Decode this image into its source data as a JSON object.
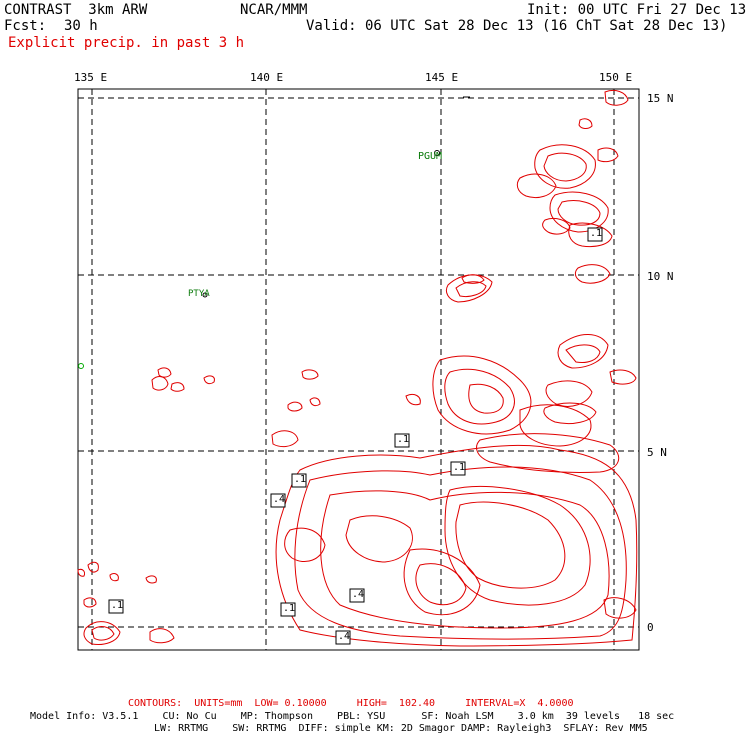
{
  "header": {
    "model": "CONTRAST  3km ARW",
    "org": "NCAR/MMM",
    "init": "Init: 00 UTC Fri 27 Dec 13",
    "fcst_label": "Fcst:",
    "fcst_value": "30 h",
    "valid": "Valid: 06 UTC Sat 28 Dec 13 (16 ChT Sat 28 Dec 13)",
    "field": "Explicit precip. in past 3 h"
  },
  "map": {
    "lon_labels": [
      "135 E",
      "140 E",
      "145 E",
      "150 E"
    ],
    "lat_labels": [
      "15 N",
      "10 N",
      "5 N",
      "0"
    ],
    "places": [
      "PGUM",
      "PTYA"
    ],
    "contour_labels": [
      ".1",
      ".1",
      ".1",
      ".1",
      ".4",
      ".1",
      ".1",
      ".4",
      ".4"
    ],
    "contour_color": "#e00000"
  },
  "footer": {
    "contours": "CONTOURS:  UNITS=mm  LOW= 0.10000     HIGH=  102.40     INTERVAL=X  4.0000",
    "model_info": "Model Info: V3.5.1    CU: No Cu    MP: Thompson    PBL: YSU      SF: Noah LSM    3.0 km  39 levels   18 sec",
    "physics": "LW: RRTMG    SW: RRTMG  DIFF: simple KM: 2D Smagor DAMP: Rayleigh3  SFLAY: Rev MM5"
  }
}
